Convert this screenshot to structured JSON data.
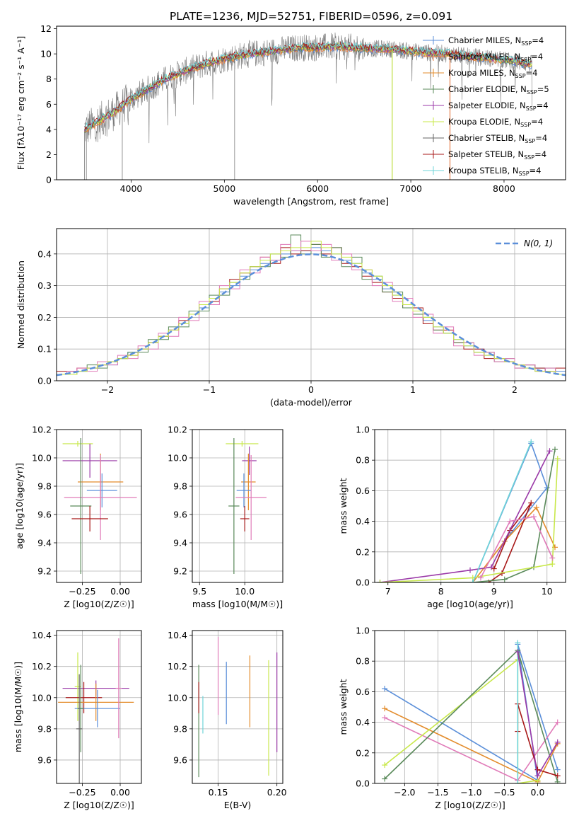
{
  "colors": {
    "Chabrier MILES": "#5b8fd9",
    "Salpeter MILES": "#e8804a",
    "Kroupa MILES": "#e38c2c",
    "Chabrier ELODIE": "#5a8a5a",
    "Salpeter ELODIE": "#9b3aa8",
    "Kroupa ELODIE": "#c8e84a",
    "Chabrier STELIB": "#666666",
    "Salpeter STELIB": "#a81818",
    "Kroupa STELIB": "#6fd4d8",
    "normal": "#5b8fd9",
    "pink": "#e07ab8"
  },
  "chart_data": [
    {
      "id": "spectrum",
      "type": "line",
      "title": "PLATE=1236, MJD=52751, FIBERID=0596, z=0.091",
      "xlabel": "wavelength [Angstrom, rest frame]",
      "ylabel": "Flux [fλ10⁻¹⁷ erg cm⁻² s⁻¹ A⁻¹]",
      "xlim": [
        3200,
        8660
      ],
      "ylim": [
        0,
        12.2
      ],
      "xticks": [
        "4000",
        "5000",
        "6000",
        "7000",
        "8000"
      ],
      "yticks": [
        "0",
        "2",
        "4",
        "6",
        "8",
        "10",
        "12"
      ],
      "legend": "top-right",
      "data_trend": {
        "x": [
          3500,
          3600,
          3800,
          4000,
          4200,
          4400,
          4600,
          4800,
          5000,
          5200,
          5400,
          5600,
          5800,
          6000,
          6200,
          6400,
          6600,
          6800,
          7000,
          7200,
          7400,
          7600,
          7800,
          8000,
          8200,
          8300
        ],
        "y": [
          4.0,
          4.4,
          5.3,
          6.4,
          7.3,
          8.1,
          8.7,
          9.2,
          9.6,
          9.9,
          10.1,
          10.3,
          10.5,
          10.5,
          10.6,
          10.5,
          10.4,
          10.4,
          10.2,
          10.1,
          10.0,
          9.8,
          9.7,
          9.5,
          9.3,
          9.2
        ]
      },
      "legend_entries": [
        {
          "model": "Chabrier MILES",
          "n": "4",
          "ngroups": 1
        },
        {
          "model": "Salpeter MILES",
          "n": "4",
          "ngroups": 1
        },
        {
          "model": "Kroupa MILES",
          "n": "4",
          "ngroups": 1
        },
        {
          "model": "Chabrier ELODIE",
          "n": "5",
          "ngroups": 1
        },
        {
          "model": "Salpeter ELODIE",
          "n": "4",
          "ngroups": 1
        },
        {
          "model": "Kroupa ELODIE",
          "n": "4",
          "ngroups": 1
        },
        {
          "model": "Chabrier STELIB",
          "n": "4",
          "ngroups": 1
        },
        {
          "model": "Salpeter STELIB",
          "n": "4",
          "ngroups": 1
        },
        {
          "model": "Kroupa STELIB",
          "n": "4",
          "ngroups": 1
        }
      ],
      "nssp_label": "N",
      "nssp_sub": "SSP",
      "legend_eq": "="
    },
    {
      "id": "residuals",
      "type": "line",
      "xlabel": "(data-model)/error",
      "ylabel": "Normed distribution",
      "xlim": [
        -2.5,
        2.5
      ],
      "ylim": [
        0,
        0.48
      ],
      "xticks": [
        "−2",
        "−1",
        "0",
        "1",
        "2"
      ],
      "yticks": [
        "0.0",
        "0.1",
        "0.2",
        "0.3",
        "0.4"
      ],
      "legend": "top-right",
      "legend_label": "N(0, 1)",
      "bin_edges_start": -2.5,
      "bin_width": 0.1,
      "histograms": {
        "Chabrier MILES": [
          0.02,
          0.03,
          0.03,
          0.04,
          0.05,
          0.05,
          0.07,
          0.09,
          0.1,
          0.12,
          0.14,
          0.16,
          0.18,
          0.21,
          0.23,
          0.26,
          0.28,
          0.3,
          0.33,
          0.35,
          0.37,
          0.38,
          0.4,
          0.41,
          0.41,
          0.42,
          0.41,
          0.4,
          0.38,
          0.37,
          0.34,
          0.32,
          0.29,
          0.27,
          0.24,
          0.22,
          0.19,
          0.17,
          0.15,
          0.13,
          0.11,
          0.1,
          0.08,
          0.07,
          0.06,
          0.05,
          0.04,
          0.04,
          0.03,
          0.03
        ],
        "Salpeter STELIB": [
          0.03,
          0.03,
          0.04,
          0.04,
          0.05,
          0.06,
          0.07,
          0.08,
          0.1,
          0.12,
          0.14,
          0.16,
          0.19,
          0.21,
          0.24,
          0.25,
          0.29,
          0.32,
          0.34,
          0.36,
          0.39,
          0.37,
          0.42,
          0.4,
          0.41,
          0.43,
          0.4,
          0.42,
          0.37,
          0.36,
          0.33,
          0.31,
          0.28,
          0.26,
          0.23,
          0.23,
          0.18,
          0.16,
          0.16,
          0.12,
          0.1,
          0.1,
          0.07,
          0.07,
          0.06,
          0.05,
          0.05,
          0.04,
          0.03,
          0.04
        ],
        "Chabrier ELODIE": [
          0.02,
          0.02,
          0.03,
          0.05,
          0.04,
          0.06,
          0.07,
          0.09,
          0.09,
          0.13,
          0.13,
          0.17,
          0.17,
          0.22,
          0.22,
          0.27,
          0.27,
          0.31,
          0.32,
          0.36,
          0.36,
          0.4,
          0.39,
          0.46,
          0.4,
          0.43,
          0.39,
          0.42,
          0.36,
          0.39,
          0.32,
          0.33,
          0.28,
          0.28,
          0.23,
          0.21,
          0.2,
          0.16,
          0.15,
          0.12,
          0.12,
          0.09,
          0.09,
          0.06,
          0.07,
          0.04,
          0.05,
          0.03,
          0.04,
          0.02
        ],
        "pink": [
          0.02,
          0.03,
          0.04,
          0.03,
          0.06,
          0.05,
          0.08,
          0.07,
          0.11,
          0.1,
          0.15,
          0.14,
          0.2,
          0.19,
          0.25,
          0.24,
          0.3,
          0.29,
          0.35,
          0.34,
          0.39,
          0.38,
          0.43,
          0.41,
          0.44,
          0.41,
          0.43,
          0.38,
          0.4,
          0.35,
          0.35,
          0.3,
          0.31,
          0.25,
          0.26,
          0.2,
          0.21,
          0.15,
          0.17,
          0.11,
          0.12,
          0.08,
          0.09,
          0.06,
          0.07,
          0.04,
          0.05,
          0.03,
          0.04,
          0.02
        ],
        "Kroupa ELODIE": [
          0.02,
          0.02,
          0.03,
          0.04,
          0.05,
          0.06,
          0.07,
          0.08,
          0.1,
          0.12,
          0.14,
          0.16,
          0.18,
          0.21,
          0.24,
          0.26,
          0.29,
          0.31,
          0.34,
          0.36,
          0.38,
          0.4,
          0.41,
          0.42,
          0.42,
          0.44,
          0.42,
          0.4,
          0.39,
          0.37,
          0.35,
          0.33,
          0.3,
          0.27,
          0.24,
          0.22,
          0.2,
          0.17,
          0.15,
          0.13,
          0.11,
          0.09,
          0.08,
          0.07,
          0.06,
          0.05,
          0.04,
          0.03,
          0.03,
          0.02
        ]
      }
    },
    {
      "id": "age_vs_Z",
      "type": "scatter",
      "xlabel": "Z [log10(Z/Z☉)]",
      "ylabel": "age  [log10(age/yr)]",
      "xlim": [
        -0.42,
        0.14
      ],
      "ylim": [
        9.12,
        10.2
      ],
      "xticks": [
        "−0.25",
        "0.00"
      ],
      "yticks": [
        "9.2",
        "9.4",
        "9.6",
        "9.8",
        "10.0",
        "10.2"
      ],
      "points": [
        {
          "model": "Kroupa ELODIE",
          "x": -0.28,
          "y": 10.1,
          "xerr": 0.1,
          "yerr": 0.02
        },
        {
          "model": "Salpeter ELODIE",
          "x": -0.2,
          "y": 9.98,
          "xerr": 0.18,
          "yerr": 0.12
        },
        {
          "model": "Kroupa MILES",
          "x": -0.13,
          "y": 9.83,
          "xerr": 0.15,
          "yerr": 0.2
        },
        {
          "model": "Chabrier MILES",
          "x": -0.12,
          "y": 9.77,
          "xerr": 0.1,
          "yerr": 0.12
        },
        {
          "model": "pink",
          "x": -0.13,
          "y": 9.72,
          "xerr": 0.24,
          "yerr": 0.3
        },
        {
          "model": "Chabrier ELODIE",
          "x": -0.26,
          "y": 9.66,
          "xerr": 0.07,
          "yerr": 0.48
        },
        {
          "model": "Salpeter STELIB",
          "x": -0.2,
          "y": 9.57,
          "xerr": 0.12,
          "yerr": 0.09
        }
      ]
    },
    {
      "id": "age_vs_mass",
      "type": "scatter",
      "xlabel": "mass [log10(M/M☉)]",
      "xlim": [
        9.42,
        10.42
      ],
      "ylim": [
        9.12,
        10.2
      ],
      "xticks": [
        "9.5",
        "10.0"
      ],
      "yticks": [
        "9.2",
        "9.4",
        "9.6",
        "9.8",
        "10.0",
        "10.2"
      ],
      "points": [
        {
          "model": "Kroupa ELODIE",
          "x": 9.97,
          "y": 10.1,
          "xerr": 0.18,
          "yerr": 0.02
        },
        {
          "model": "Salpeter ELODIE",
          "x": 10.05,
          "y": 9.98,
          "xerr": 0.08,
          "yerr": 0.1
        },
        {
          "model": "Kroupa MILES",
          "x": 10.04,
          "y": 9.83,
          "xerr": 0.08,
          "yerr": 0.2
        },
        {
          "model": "Chabrier MILES",
          "x": 9.99,
          "y": 9.77,
          "xerr": 0.08,
          "yerr": 0.12
        },
        {
          "model": "pink",
          "x": 10.07,
          "y": 9.72,
          "xerr": 0.17,
          "yerr": 0.3
        },
        {
          "model": "Chabrier ELODIE",
          "x": 9.88,
          "y": 9.66,
          "xerr": 0.06,
          "yerr": 0.48
        },
        {
          "model": "Salpeter STELIB",
          "x": 10.0,
          "y": 9.57,
          "xerr": 0.05,
          "yerr": 0.09
        }
      ]
    },
    {
      "id": "weight_vs_age",
      "type": "line",
      "xlabel": "age  [log10(age/yr)]",
      "ylabel": "mass weight",
      "xlim": [
        6.75,
        10.35
      ],
      "ylim": [
        0,
        1
      ],
      "xticks": [
        "7",
        "8",
        "9",
        "10"
      ],
      "yticks": [
        "0.0",
        "0.2",
        "0.4",
        "0.6",
        "0.8",
        "1.0"
      ],
      "series": [
        {
          "model": "Chabrier MILES",
          "x": [
            8.6,
            9.7,
            10.0,
            9.2
          ],
          "y": [
            0.0,
            0.91,
            0.62,
            0.27
          ]
        },
        {
          "model": "Kroupa MILES",
          "x": [
            8.6,
            9.2,
            9.8,
            10.15
          ],
          "y": [
            0.0,
            0.27,
            0.49,
            0.23
          ]
        },
        {
          "model": "Salpeter STELIB",
          "x": [
            8.9,
            9.15,
            9.7,
            9.3,
            9.0
          ],
          "y": [
            0.0,
            0.06,
            0.52,
            0.34,
            0.09
          ]
        },
        {
          "model": "Salpeter ELODIE",
          "x": [
            6.85,
            8.55,
            8.95,
            10.05
          ],
          "y": [
            0.0,
            0.08,
            0.1,
            0.86
          ]
        },
        {
          "model": "Chabrier ELODIE",
          "x": [
            6.85,
            8.6,
            9.2,
            9.75,
            10.15
          ],
          "y": [
            0.0,
            0.0,
            0.02,
            0.1,
            0.87
          ]
        },
        {
          "model": "Kroupa ELODIE",
          "x": [
            6.85,
            8.6,
            10.1,
            10.2
          ],
          "y": [
            0.0,
            0.03,
            0.12,
            0.81
          ]
        },
        {
          "model": "Kroupa STELIB",
          "x": [
            8.6,
            9.7
          ],
          "y": [
            0.0,
            0.92
          ]
        },
        {
          "model": "pink",
          "x": [
            8.75,
            9.3,
            9.75,
            10.1
          ],
          "y": [
            0.03,
            0.4,
            0.43,
            0.16
          ]
        }
      ]
    },
    {
      "id": "mass_vs_Z",
      "type": "scatter",
      "xlabel": "Z [log10(Z/Z☉)]",
      "ylabel": "mass [log10(M/M☉)]",
      "xlim": [
        -0.42,
        0.14
      ],
      "ylim": [
        9.45,
        10.43
      ],
      "xticks": [
        "−0.25",
        "0.00"
      ],
      "yticks": [
        "9.6",
        "9.8",
        "10.0",
        "10.2",
        "10.4"
      ],
      "points": [
        {
          "model": "Salpeter ELODIE",
          "x": -0.16,
          "y": 10.06,
          "xerr": 0.22,
          "yerr": 0.05
        },
        {
          "model": "Kroupa ELODIE",
          "x": -0.28,
          "y": 10.07,
          "xerr": 0.02,
          "yerr": 0.22
        },
        {
          "model": "Salpeter STELIB",
          "x": -0.24,
          "y": 10.0,
          "xerr": 0.12,
          "yerr": 0.1
        },
        {
          "model": "Kroupa MILES",
          "x": -0.16,
          "y": 9.97,
          "xerr": 0.25,
          "yerr": 0.12
        },
        {
          "model": "Chabrier MILES",
          "x": -0.15,
          "y": 9.93,
          "xerr": 0.15,
          "yerr": 0.12
        },
        {
          "model": "pink",
          "x": -0.01,
          "y": 10.06,
          "xerr": 0.02,
          "yerr": 0.32
        },
        {
          "model": "Chabrier ELODIE",
          "x": -0.26,
          "y": 9.93,
          "xerr": 0.02,
          "yerr": 0.28
        },
        {
          "model": "Chabrier STELIB",
          "x": -0.27,
          "y": 9.8,
          "xerr": 0.02,
          "yerr": 0.35
        }
      ]
    },
    {
      "id": "mass_vs_ebv",
      "type": "scatter",
      "xlabel": "E(B-V)",
      "xlim": [
        0.128,
        0.205
      ],
      "ylim": [
        9.45,
        10.43
      ],
      "xticks": [
        "0.15",
        "0.20"
      ],
      "yticks": [
        "9.6",
        "9.8",
        "10.0",
        "10.2",
        "10.4"
      ],
      "points": [
        {
          "model": "Chabrier ELODIE",
          "x": 0.1335,
          "y": 9.85,
          "yerr": 0.36
        },
        {
          "model": "Salpeter STELIB",
          "x": 0.1335,
          "y": 10.0,
          "yerr": 0.1
        },
        {
          "model": "Kroupa STELIB",
          "x": 0.137,
          "y": 9.89,
          "yerr": 0.12
        },
        {
          "model": "pink",
          "x": 0.15,
          "y": 10.14,
          "yerr": 0.25
        },
        {
          "model": "Chabrier MILES",
          "x": 0.157,
          "y": 10.03,
          "yerr": 0.2
        },
        {
          "model": "Kroupa MILES",
          "x": 0.177,
          "y": 10.04,
          "yerr": 0.23
        },
        {
          "model": "Kroupa ELODIE",
          "x": 0.193,
          "y": 9.87,
          "yerr": 0.37
        },
        {
          "model": "Salpeter ELODIE",
          "x": 0.2,
          "y": 9.97,
          "yerr": 0.32
        }
      ]
    },
    {
      "id": "weight_vs_Z",
      "type": "line",
      "xlabel": "Z [log10(Z/Z☉)]",
      "ylabel": "mass weight",
      "xlim": [
        -2.45,
        0.42
      ],
      "ylim": [
        0,
        1
      ],
      "xticks": [
        "−2.0",
        "−1.5",
        "−1.0",
        "−0.5",
        "0.0"
      ],
      "yticks": [
        "0.0",
        "0.2",
        "0.4",
        "0.6",
        "0.8",
        "1.0"
      ],
      "series": [
        {
          "model": "Chabrier MILES",
          "x": [
            -2.3,
            0.0,
            -0.3,
            0.3
          ],
          "y": [
            0.62,
            0.02,
            0.91,
            0.09
          ]
        },
        {
          "model": "Kroupa MILES",
          "x": [
            -2.3,
            0.0,
            0.3
          ],
          "y": [
            0.49,
            0.01,
            0.26
          ]
        },
        {
          "model": "pink",
          "x": [
            -2.3,
            -0.3,
            0.3
          ],
          "y": [
            0.43,
            0.02,
            0.4
          ]
        },
        {
          "model": "Kroupa ELODIE",
          "x": [
            -2.3,
            -0.3,
            -0.3,
            0.0
          ],
          "y": [
            0.12,
            0.81,
            0.0,
            0.02
          ]
        },
        {
          "model": "Chabrier ELODIE",
          "x": [
            -2.3,
            -0.3,
            0.3
          ],
          "y": [
            0.03,
            0.87,
            0.01
          ]
        },
        {
          "model": "Salpeter STELIB",
          "x": [
            -0.3,
            -0.3,
            0.0,
            0.3
          ],
          "y": [
            0.34,
            0.52,
            0.09,
            0.05
          ]
        },
        {
          "model": "Kroupa STELIB",
          "x": [
            -0.3,
            -0.3,
            -0.3
          ],
          "y": [
            0.0,
            0.92,
            0.0
          ]
        },
        {
          "model": "Salpeter ELODIE",
          "x": [
            -0.3,
            0.0,
            0.3
          ],
          "y": [
            0.86,
            0.05,
            0.27
          ]
        }
      ]
    }
  ]
}
